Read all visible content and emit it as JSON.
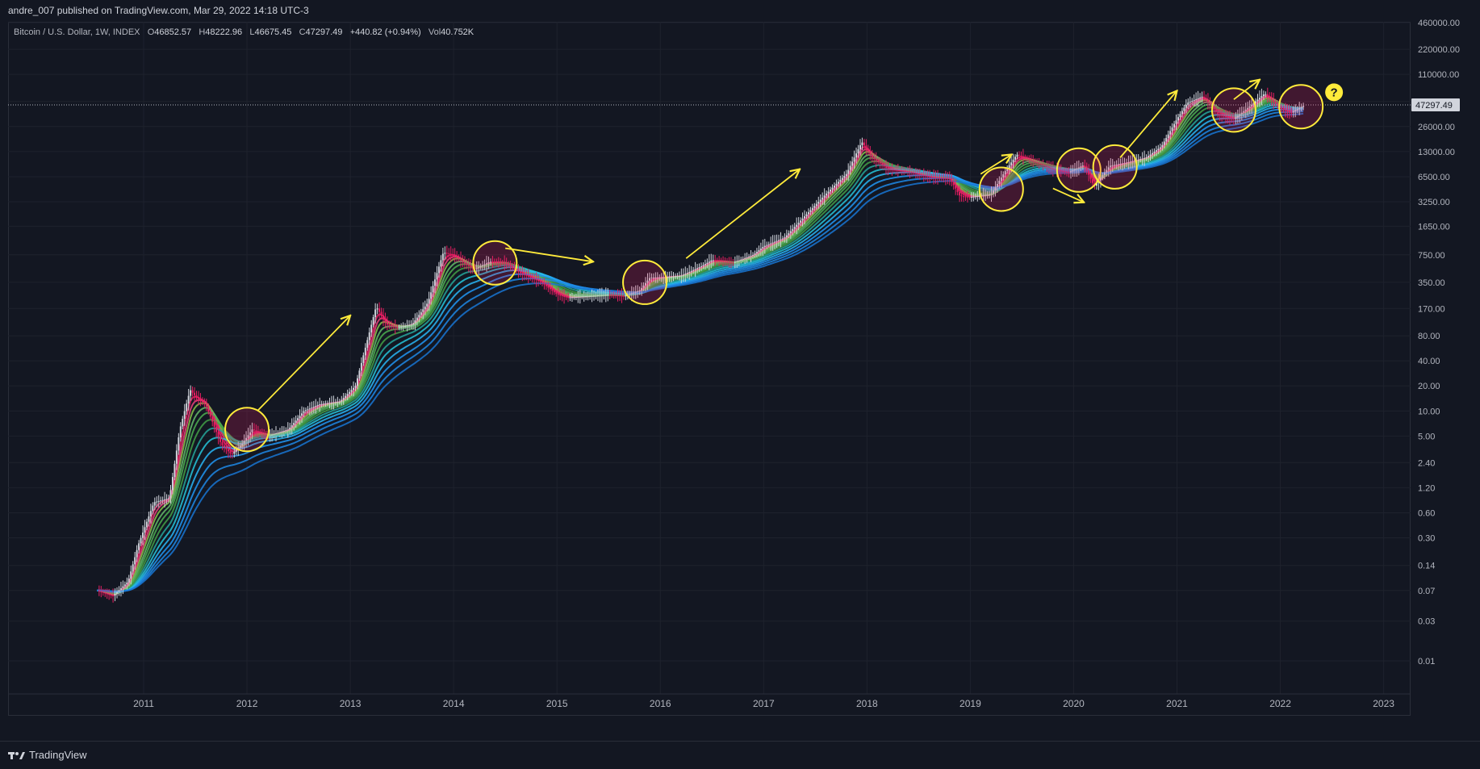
{
  "header": {
    "published": "andre_007 published on TradingView.com, Mar 29, 2022 14:18 UTC-3"
  },
  "legend": {
    "symbol": "Bitcoin / U.S. Dollar, 1W, INDEX",
    "open_label": "O",
    "open": "46852.57",
    "high_label": "H",
    "high": "48222.96",
    "low_label": "L",
    "low": "46675.45",
    "close_label": "C",
    "close": "47297.49",
    "change": "+440.82 (+0.94%)",
    "vol_label": "Vol",
    "vol": "40.752K"
  },
  "price_label": "47297.49",
  "annotation_mark": "?",
  "brand": {
    "name": "TradingView"
  },
  "colors": {
    "background": "#131722",
    "grid": "#1e222d",
    "text": "#b2b5be",
    "annotation": "#ffeb3b",
    "ribbon_top": "#e91e63",
    "ribbon_mid": "#4caf50",
    "ribbon_bottom": "#2196f3",
    "candle_up": "#d1d4dc",
    "candle_down": "#e91e63"
  },
  "chart_data": {
    "type": "line",
    "scale": "log",
    "x_ticks": [
      "2011",
      "2012",
      "2013",
      "2014",
      "2015",
      "2016",
      "2017",
      "2018",
      "2019",
      "2020",
      "2021",
      "2022",
      "2023"
    ],
    "y_ticks": [
      "460000.00",
      "220000.00",
      "110000.00",
      "52000.00",
      "26000.00",
      "13000.00",
      "6500.00",
      "3250.00",
      "1650.00",
      "750.00",
      "350.00",
      "170.00",
      "80.00",
      "40.00",
      "20.00",
      "10.00",
      "5.00",
      "2.40",
      "1.20",
      "0.60",
      "0.30",
      "0.14",
      "0.07",
      "0.03",
      "0.01"
    ],
    "y_tick_values": [
      460000,
      220000,
      110000,
      52000,
      26000,
      13000,
      6500,
      3250,
      1650,
      750,
      350,
      170,
      80,
      40,
      20,
      10,
      5,
      2.4,
      1.2,
      0.6,
      0.3,
      0.14,
      0.07,
      0.03,
      0.01
    ],
    "xlim": [
      2010.5,
      2023.1
    ],
    "price_path": [
      [
        2010.55,
        0.07
      ],
      [
        2010.7,
        0.06
      ],
      [
        2010.85,
        0.09
      ],
      [
        2010.95,
        0.25
      ],
      [
        2011.1,
        0.8
      ],
      [
        2011.25,
        0.9
      ],
      [
        2011.35,
        6
      ],
      [
        2011.45,
        18
      ],
      [
        2011.5,
        15
      ],
      [
        2011.6,
        12
      ],
      [
        2011.75,
        4
      ],
      [
        2011.85,
        3
      ],
      [
        2011.95,
        4
      ],
      [
        2012.05,
        6
      ],
      [
        2012.2,
        5
      ],
      [
        2012.4,
        6
      ],
      [
        2012.55,
        10
      ],
      [
        2012.7,
        12
      ],
      [
        2012.9,
        13
      ],
      [
        2013.05,
        20
      ],
      [
        2013.15,
        60
      ],
      [
        2013.25,
        180
      ],
      [
        2013.35,
        110
      ],
      [
        2013.45,
        100
      ],
      [
        2013.6,
        110
      ],
      [
        2013.75,
        200
      ],
      [
        2013.9,
        800
      ],
      [
        2014.0,
        750
      ],
      [
        2014.1,
        600
      ],
      [
        2014.2,
        500
      ],
      [
        2014.35,
        620
      ],
      [
        2014.5,
        600
      ],
      [
        2014.65,
        450
      ],
      [
        2014.85,
        350
      ],
      [
        2015.0,
        250
      ],
      [
        2015.1,
        230
      ],
      [
        2015.3,
        240
      ],
      [
        2015.5,
        250
      ],
      [
        2015.65,
        240
      ],
      [
        2015.8,
        280
      ],
      [
        2015.9,
        400
      ],
      [
        2016.0,
        400
      ],
      [
        2016.2,
        420
      ],
      [
        2016.4,
        550
      ],
      [
        2016.5,
        650
      ],
      [
        2016.7,
        600
      ],
      [
        2016.9,
        750
      ],
      [
        2017.0,
        950
      ],
      [
        2017.2,
        1200
      ],
      [
        2017.4,
        2200
      ],
      [
        2017.6,
        4000
      ],
      [
        2017.8,
        7000
      ],
      [
        2017.95,
        17000
      ],
      [
        2018.05,
        11000
      ],
      [
        2018.2,
        8000
      ],
      [
        2018.4,
        7500
      ],
      [
        2018.6,
        6500
      ],
      [
        2018.8,
        6200
      ],
      [
        2018.9,
        3800
      ],
      [
        2019.0,
        3700
      ],
      [
        2019.2,
        4000
      ],
      [
        2019.35,
        8000
      ],
      [
        2019.45,
        12000
      ],
      [
        2019.6,
        10000
      ],
      [
        2019.8,
        8000
      ],
      [
        2019.95,
        7300
      ],
      [
        2020.1,
        9000
      ],
      [
        2020.2,
        5000
      ],
      [
        2020.35,
        8800
      ],
      [
        2020.5,
        9500
      ],
      [
        2020.7,
        11000
      ],
      [
        2020.85,
        15000
      ],
      [
        2021.0,
        32000
      ],
      [
        2021.1,
        50000
      ],
      [
        2021.25,
        60000
      ],
      [
        2021.4,
        36000
      ],
      [
        2021.55,
        32000
      ],
      [
        2021.7,
        45000
      ],
      [
        2021.85,
        65000
      ],
      [
        2022.0,
        43000
      ],
      [
        2022.1,
        38000
      ],
      [
        2022.24,
        47297.49
      ]
    ],
    "last_close": 47297.49,
    "annotations": {
      "circles": [
        [
          2012.0,
          6
        ],
        [
          2014.4,
          600
        ],
        [
          2015.85,
          350
        ],
        [
          2019.3,
          4600
        ],
        [
          2020.05,
          7800
        ],
        [
          2020.4,
          8500
        ],
        [
          2021.55,
          41000
        ],
        [
          2022.2,
          45000
        ]
      ],
      "arrows": [
        [
          [
            2012.1,
            10
          ],
          [
            2013.0,
            140
          ]
        ],
        [
          [
            2014.5,
            900
          ],
          [
            2015.35,
            620
          ]
        ],
        [
          [
            2016.25,
            680
          ],
          [
            2017.35,
            8000
          ]
        ],
        [
          [
            2019.1,
            7000
          ],
          [
            2019.4,
            12000
          ]
        ],
        [
          [
            2019.8,
            4700
          ],
          [
            2020.1,
            3200
          ]
        ],
        [
          [
            2020.45,
            11000
          ],
          [
            2021.0,
            70000
          ]
        ],
        [
          [
            2021.55,
            55000
          ],
          [
            2021.8,
            95000
          ]
        ]
      ],
      "question": [
        2022.52,
        67000
      ]
    }
  }
}
